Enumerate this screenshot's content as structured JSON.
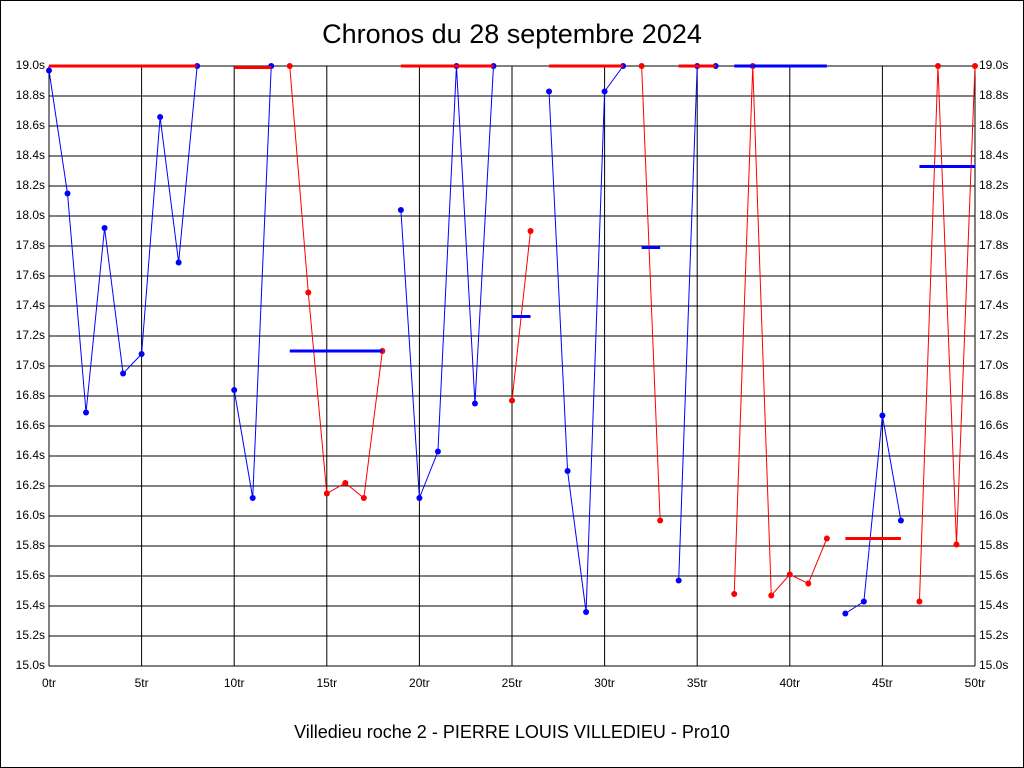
{
  "chart_data": {
    "type": "line",
    "title": "Chronos du 28 septembre 2024",
    "x_label": "Villedieu roche 2 - PIERRE LOUIS VILLEDIEU - Pro10",
    "x": [
      0,
      1,
      2,
      3,
      4,
      5,
      6,
      7,
      8,
      9,
      10,
      11,
      12,
      13,
      14,
      15,
      16,
      17,
      18,
      19,
      20,
      21,
      22,
      23,
      24,
      25,
      26,
      27,
      28,
      29,
      30,
      31,
      32,
      33,
      34,
      35,
      36,
      37,
      38,
      39,
      40,
      41,
      42,
      43,
      44,
      45,
      46,
      47,
      48,
      49,
      50
    ],
    "series": [
      {
        "color": "#0000ff",
        "values": [
          18.97,
          18.15,
          16.69,
          17.92,
          16.95,
          17.08,
          18.66,
          17.69,
          19.0,
          null,
          16.84,
          16.12,
          19.0,
          null,
          null,
          null,
          null,
          null,
          null,
          18.04,
          16.12,
          16.43,
          19.0,
          16.75,
          19.0,
          null,
          null,
          18.83,
          16.3,
          15.36,
          18.83,
          19.0,
          null,
          null,
          15.57,
          19.0,
          19.0,
          null,
          null,
          null,
          null,
          null,
          null,
          15.35,
          15.43,
          16.67,
          15.97,
          null,
          null,
          null,
          null
        ]
      },
      {
        "color": "#ff0000",
        "values": [
          null,
          null,
          null,
          null,
          null,
          null,
          null,
          null,
          null,
          null,
          null,
          null,
          null,
          19.0,
          17.49,
          16.15,
          16.22,
          16.12,
          17.1,
          null,
          null,
          null,
          null,
          null,
          null,
          16.77,
          17.9,
          null,
          null,
          null,
          null,
          null,
          19.0,
          15.97,
          null,
          null,
          null,
          15.48,
          19.0,
          15.47,
          15.61,
          15.55,
          15.85,
          null,
          null,
          null,
          null,
          15.43,
          19.0,
          15.81,
          19.0
        ]
      }
    ],
    "hlines": [
      {
        "x0": 0,
        "x1": 8,
        "y": 19.0,
        "color": "#ff0000"
      },
      {
        "x0": 10,
        "x1": 12,
        "y": 18.99,
        "color": "#ff0000"
      },
      {
        "x0": 13,
        "x1": 18,
        "y": 17.1,
        "color": "#0000ff"
      },
      {
        "x0": 19,
        "x1": 24,
        "y": 19.0,
        "color": "#ff0000"
      },
      {
        "x0": 25,
        "x1": 26,
        "y": 17.33,
        "color": "#0000ff"
      },
      {
        "x0": 27,
        "x1": 31,
        "y": 19.0,
        "color": "#ff0000"
      },
      {
        "x0": 32,
        "x1": 33,
        "y": 17.79,
        "color": "#0000ff"
      },
      {
        "x0": 34,
        "x1": 36,
        "y": 19.0,
        "color": "#ff0000"
      },
      {
        "x0": 37,
        "x1": 42,
        "y": 19.0,
        "color": "#0000ff"
      },
      {
        "x0": 43,
        "x1": 46,
        "y": 15.85,
        "color": "#ff0000"
      },
      {
        "x0": 47,
        "x1": 50,
        "y": 18.33,
        "color": "#0000ff"
      }
    ],
    "xlim": [
      0,
      50
    ],
    "xticks": [
      {
        "value": 0,
        "label": "0tr"
      },
      {
        "value": 5,
        "label": "5tr"
      },
      {
        "value": 10,
        "label": "10tr"
      },
      {
        "value": 15,
        "label": "15tr"
      },
      {
        "value": 20,
        "label": "20tr"
      },
      {
        "value": 25,
        "label": "25tr"
      },
      {
        "value": 30,
        "label": "30tr"
      },
      {
        "value": 35,
        "label": "35tr"
      },
      {
        "value": 40,
        "label": "40tr"
      },
      {
        "value": 45,
        "label": "45tr"
      },
      {
        "value": 50,
        "label": "50tr"
      }
    ],
    "ylim": [
      15.0,
      19.0
    ],
    "yticks": [
      {
        "value": 15.0,
        "label": "15.0s"
      },
      {
        "value": 15.2,
        "label": "15.2s"
      },
      {
        "value": 15.4,
        "label": "15.4s"
      },
      {
        "value": 15.6,
        "label": "15.6s"
      },
      {
        "value": 15.8,
        "label": "15.8s"
      },
      {
        "value": 16.0,
        "label": "16.0s"
      },
      {
        "value": 16.2,
        "label": "16.2s"
      },
      {
        "value": 16.4,
        "label": "16.4s"
      },
      {
        "value": 16.6,
        "label": "16.6s"
      },
      {
        "value": 16.8,
        "label": "16.8s"
      },
      {
        "value": 17.0,
        "label": "17.0s"
      },
      {
        "value": 17.2,
        "label": "17.2s"
      },
      {
        "value": 17.4,
        "label": "17.4s"
      },
      {
        "value": 17.6,
        "label": "17.6s"
      },
      {
        "value": 17.8,
        "label": "17.8s"
      },
      {
        "value": 18.0,
        "label": "18.0s"
      },
      {
        "value": 18.2,
        "label": "18.2s"
      },
      {
        "value": 18.4,
        "label": "18.4s"
      },
      {
        "value": 18.6,
        "label": "18.6s"
      },
      {
        "value": 18.8,
        "label": "18.8s"
      },
      {
        "value": 19.0,
        "label": "19.0s"
      }
    ],
    "grid": true
  }
}
